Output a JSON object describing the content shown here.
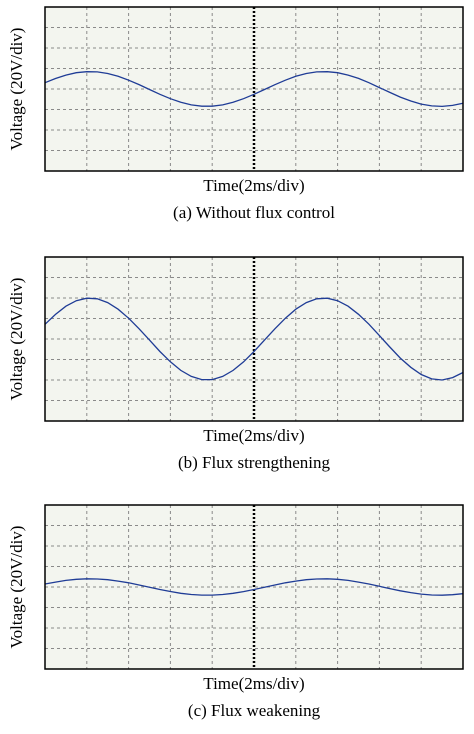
{
  "chart_data": [
    {
      "type": "line",
      "xlabel": "Time(2ms/div)",
      "ylabel": "Voltage (20V/div)",
      "caption": "(a) Without flux control",
      "xlim": [
        0,
        20
      ],
      "ylim": [
        -80,
        80
      ],
      "grid": true,
      "grid_step": [
        2,
        20
      ],
      "color": "#1f3c96",
      "x": [
        0,
        0.5,
        1,
        1.5,
        2,
        2.5,
        3,
        3.5,
        4,
        4.5,
        5,
        5.5,
        6,
        6.5,
        7,
        7.5,
        8,
        8.5,
        9,
        9.5,
        10,
        10.5,
        11,
        11.5,
        12,
        12.5,
        13,
        13.5,
        14,
        14.5,
        15,
        15.5,
        16,
        16.5,
        17,
        17.5,
        18,
        18.5,
        19,
        19.5,
        20
      ],
      "values": [
        6.1,
        10.2,
        13.6,
        15.9,
        16.9,
        16.7,
        15.1,
        12.4,
        8.6,
        4.3,
        -0.5,
        -5.2,
        -9.5,
        -13.0,
        -15.5,
        -16.8,
        -16.8,
        -15.5,
        -13.0,
        -9.5,
        -5.2,
        -0.5,
        4.2,
        8.6,
        12.4,
        15.1,
        16.7,
        16.9,
        15.9,
        13.6,
        10.3,
        6.1,
        1.4,
        -3.3,
        -7.9,
        -11.7,
        -14.7,
        -16.5,
        -17.0,
        -16.0,
        -13.9
      ]
    },
    {
      "type": "line",
      "xlabel": "Time(2ms/div)",
      "ylabel": "Voltage (20V/div)",
      "caption": "(b)  Flux strengthening",
      "xlim": [
        0,
        20
      ],
      "ylim": [
        -80,
        80
      ],
      "grid": true,
      "grid_step": [
        2,
        20
      ],
      "color": "#1f3c96",
      "x": [
        0,
        0.5,
        1,
        1.5,
        2,
        2.5,
        3,
        3.5,
        4,
        4.5,
        5,
        5.5,
        6,
        6.5,
        7,
        7.5,
        8,
        8.5,
        9,
        9.5,
        10,
        10.5,
        11,
        11.5,
        12,
        12.5,
        13,
        13.5,
        14,
        14.5,
        15,
        15.5,
        16,
        16.5,
        17,
        17.5,
        18,
        18.5,
        19,
        19.5,
        20
      ],
      "values": [
        14.3,
        24.0,
        32.0,
        37.4,
        39.8,
        39.2,
        35.5,
        29.1,
        20.3,
        10.0,
        -1.1,
        -12.2,
        -22.2,
        -30.6,
        -36.5,
        -39.6,
        -39.6,
        -36.5,
        -30.6,
        -22.3,
        -12.2,
        -1.1,
        10.0,
        20.3,
        29.1,
        35.5,
        39.2,
        39.8,
        37.4,
        32.0,
        24.1,
        14.4,
        3.3,
        -7.8,
        -18.6,
        -27.6,
        -34.6,
        -38.9,
        -40.0,
        -37.7,
        -32.7
      ]
    },
    {
      "type": "line",
      "xlabel": "Time(2ms/div)",
      "ylabel": "Voltage (20V/div)",
      "caption": "(c)  Flux weakening",
      "xlim": [
        0,
        20
      ],
      "ylim": [
        -80,
        80
      ],
      "grid": true,
      "grid_step": [
        2,
        20
      ],
      "color": "#1f3c96",
      "x": [
        0,
        0.5,
        1,
        1.5,
        2,
        2.5,
        3,
        3.5,
        4,
        4.5,
        5,
        5.5,
        6,
        6.5,
        7,
        7.5,
        8,
        8.5,
        9,
        9.5,
        10,
        10.5,
        11,
        11.5,
        12,
        12.5,
        13,
        13.5,
        14,
        14.5,
        15,
        15.5,
        16,
        16.5,
        17,
        17.5,
        18,
        18.5,
        19,
        19.5,
        20
      ],
      "values": [
        2.9,
        4.8,
        6.4,
        7.5,
        8.0,
        7.8,
        7.1,
        5.8,
        4.1,
        2.0,
        -0.2,
        -2.4,
        -4.4,
        -6.1,
        -7.3,
        -7.9,
        -7.9,
        -7.3,
        -6.1,
        -4.5,
        -2.4,
        -0.2,
        2.0,
        4.1,
        5.8,
        7.1,
        7.8,
        8.0,
        7.5,
        6.4,
        4.8,
        2.9,
        0.7,
        -1.6,
        -3.7,
        -5.5,
        -6.9,
        -7.8,
        -8.0,
        -7.5,
        -6.5
      ]
    }
  ]
}
